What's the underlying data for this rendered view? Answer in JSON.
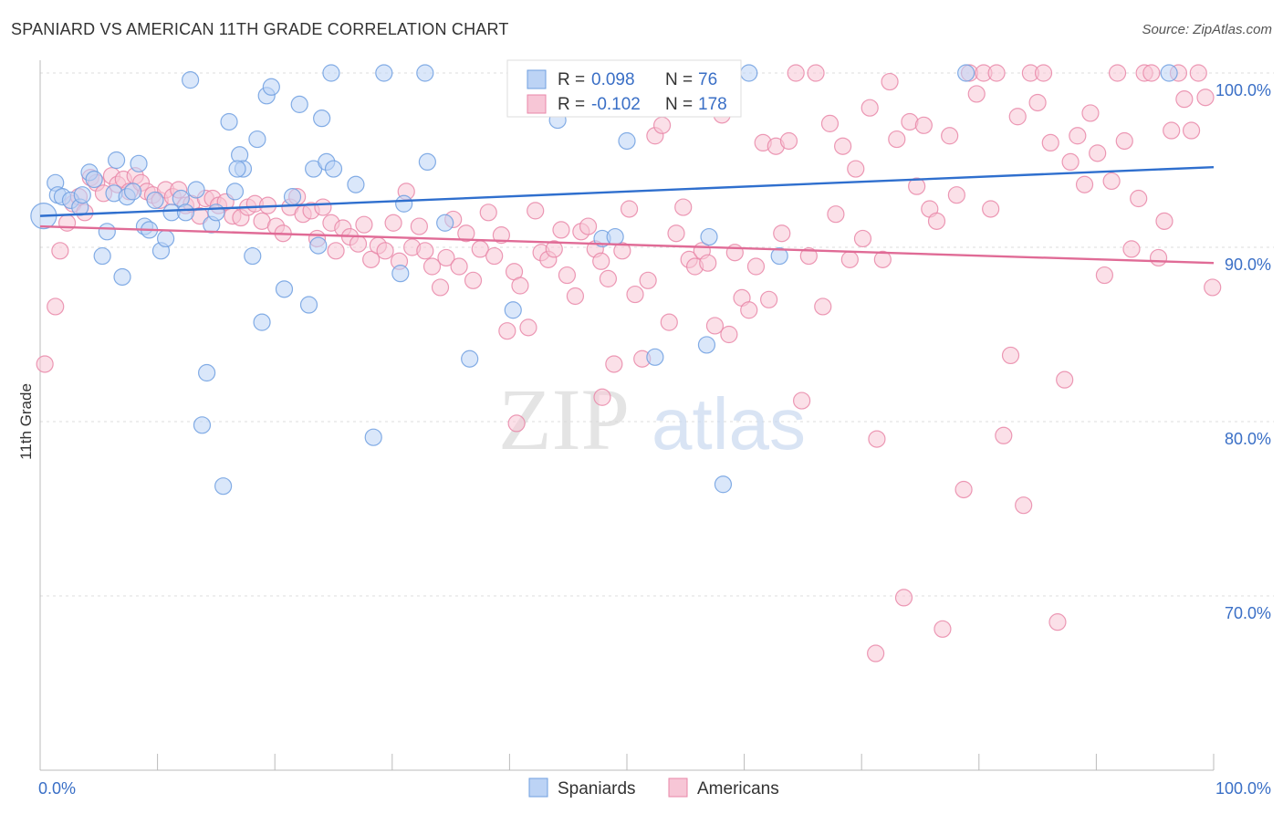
{
  "title": "SPANIARD VS AMERICAN 11TH GRADE CORRELATION CHART",
  "source": "Source: ZipAtlas.com",
  "watermark": {
    "zip": "ZIP",
    "atlas": "atlas"
  },
  "colors": {
    "spaniards": "#6f9fe0",
    "spaniards_fill": "#bcd3f5",
    "americans": "#e987a8",
    "americans_fill": "#f7c6d6",
    "blue_line": "#2f6fce",
    "pink_line": "#e06b96",
    "axis_text": "#3a6fc6",
    "grid": "#dddddd"
  },
  "legend": {
    "r_label": "R =",
    "n_label": "N =",
    "spaniards": {
      "r": "0.098",
      "n": "76"
    },
    "americans": {
      "r": "-0.102",
      "n": "178"
    }
  },
  "bottom_legend": {
    "spaniards": "Spaniards",
    "americans": "Americans"
  },
  "chart_data": {
    "type": "scatter",
    "xlabel": "",
    "ylabel": "11th Grade",
    "xlim": [
      0,
      100
    ],
    "ylim": [
      60,
      100
    ],
    "x_tick_labels": [
      "0.0%",
      "100.0%"
    ],
    "y_ticks": [
      70,
      80,
      90,
      100
    ],
    "y_tick_labels": [
      "70.0%",
      "80.0%",
      "90.0%",
      "100.0%"
    ],
    "grid": true,
    "legend_placement": "top-center",
    "series": [
      {
        "name": "Spaniards",
        "trend": {
          "x": [
            0,
            100
          ],
          "y": [
            91.8,
            94.6
          ]
        },
        "points": [
          [
            0.3,
            91.8
          ],
          [
            1.3,
            93.7
          ],
          [
            1.5,
            93.0
          ],
          [
            1.9,
            92.9
          ],
          [
            2.6,
            92.7
          ],
          [
            3.4,
            92.3
          ],
          [
            3.6,
            93.0
          ],
          [
            4.2,
            94.3
          ],
          [
            4.6,
            93.9
          ],
          [
            5.3,
            89.5
          ],
          [
            5.7,
            90.9
          ],
          [
            6.3,
            93.1
          ],
          [
            6.5,
            95.0
          ],
          [
            7.0,
            88.3
          ],
          [
            7.4,
            92.9
          ],
          [
            7.9,
            93.2
          ],
          [
            8.4,
            94.8
          ],
          [
            8.9,
            91.2
          ],
          [
            9.3,
            91.0
          ],
          [
            9.8,
            92.7
          ],
          [
            10.3,
            89.8
          ],
          [
            10.7,
            90.5
          ],
          [
            11.2,
            92.0
          ],
          [
            12.0,
            92.8
          ],
          [
            12.4,
            92.0
          ],
          [
            12.8,
            99.6
          ],
          [
            13.3,
            93.3
          ],
          [
            13.8,
            79.8
          ],
          [
            14.2,
            82.8
          ],
          [
            14.6,
            91.3
          ],
          [
            15.0,
            92.0
          ],
          [
            15.6,
            76.3
          ],
          [
            16.1,
            97.2
          ],
          [
            16.6,
            93.2
          ],
          [
            17.0,
            95.3
          ],
          [
            17.3,
            94.5
          ],
          [
            18.1,
            89.5
          ],
          [
            18.5,
            96.2
          ],
          [
            18.9,
            85.7
          ],
          [
            19.3,
            98.7
          ],
          [
            19.7,
            99.2
          ],
          [
            20.8,
            87.6
          ],
          [
            21.5,
            92.9
          ],
          [
            22.1,
            98.2
          ],
          [
            22.9,
            86.7
          ],
          [
            23.3,
            94.5
          ],
          [
            23.7,
            90.1
          ],
          [
            24.0,
            97.4
          ],
          [
            24.4,
            94.9
          ],
          [
            24.8,
            100.0
          ],
          [
            25.0,
            94.5
          ],
          [
            26.9,
            93.6
          ],
          [
            28.4,
            79.1
          ],
          [
            29.3,
            100.0
          ],
          [
            30.7,
            88.5
          ],
          [
            31.0,
            92.5
          ],
          [
            32.8,
            100.0
          ],
          [
            33.0,
            94.9
          ],
          [
            34.5,
            91.4
          ],
          [
            36.6,
            83.6
          ],
          [
            40.3,
            86.4
          ],
          [
            41.0,
            100.0
          ],
          [
            44.1,
            97.3
          ],
          [
            45.8,
            100.0
          ],
          [
            47.9,
            90.5
          ],
          [
            49.0,
            90.6
          ],
          [
            50.0,
            96.1
          ],
          [
            52.4,
            83.7
          ],
          [
            56.8,
            84.4
          ],
          [
            58.2,
            76.4
          ],
          [
            60.4,
            100.0
          ],
          [
            63.0,
            89.5
          ],
          [
            78.9,
            100.0
          ],
          [
            96.2,
            100.0
          ],
          [
            57.0,
            90.6
          ],
          [
            16.8,
            94.5
          ]
        ]
      },
      {
        "name": "Americans",
        "trend": {
          "x": [
            0,
            100
          ],
          "y": [
            91.2,
            89.1
          ]
        },
        "points": [
          [
            0.4,
            83.3
          ],
          [
            1.3,
            86.6
          ],
          [
            1.7,
            89.8
          ],
          [
            2.3,
            91.4
          ],
          [
            2.8,
            92.5
          ],
          [
            3.3,
            92.9
          ],
          [
            3.8,
            92.0
          ],
          [
            4.3,
            94.0
          ],
          [
            4.8,
            93.7
          ],
          [
            5.4,
            93.1
          ],
          [
            6.1,
            94.1
          ],
          [
            6.6,
            93.6
          ],
          [
            7.1,
            93.9
          ],
          [
            7.6,
            93.2
          ],
          [
            8.1,
            94.1
          ],
          [
            8.6,
            93.7
          ],
          [
            9.1,
            93.2
          ],
          [
            9.6,
            93.0
          ],
          [
            10.2,
            92.7
          ],
          [
            10.7,
            93.3
          ],
          [
            11.3,
            92.9
          ],
          [
            11.8,
            93.3
          ],
          [
            12.4,
            92.4
          ],
          [
            12.9,
            92.5
          ],
          [
            13.6,
            91.8
          ],
          [
            14.1,
            92.8
          ],
          [
            14.7,
            92.8
          ],
          [
            15.2,
            92.4
          ],
          [
            15.8,
            92.6
          ],
          [
            16.4,
            91.8
          ],
          [
            17.1,
            91.7
          ],
          [
            17.7,
            92.3
          ],
          [
            18.3,
            92.5
          ],
          [
            18.9,
            91.5
          ],
          [
            19.4,
            92.4
          ],
          [
            20.1,
            91.2
          ],
          [
            20.7,
            90.8
          ],
          [
            21.3,
            92.3
          ],
          [
            21.9,
            92.9
          ],
          [
            22.4,
            91.9
          ],
          [
            23.1,
            92.1
          ],
          [
            23.6,
            90.5
          ],
          [
            24.1,
            92.3
          ],
          [
            24.8,
            91.4
          ],
          [
            25.2,
            89.8
          ],
          [
            25.8,
            91.1
          ],
          [
            26.4,
            90.6
          ],
          [
            27.1,
            90.2
          ],
          [
            27.6,
            91.3
          ],
          [
            28.2,
            89.3
          ],
          [
            28.8,
            90.1
          ],
          [
            29.4,
            89.8
          ],
          [
            30.1,
            91.4
          ],
          [
            30.6,
            89.2
          ],
          [
            31.2,
            93.2
          ],
          [
            31.7,
            90.0
          ],
          [
            32.3,
            91.2
          ],
          [
            32.8,
            89.8
          ],
          [
            33.4,
            88.9
          ],
          [
            34.1,
            87.7
          ],
          [
            34.6,
            89.4
          ],
          [
            35.2,
            91.6
          ],
          [
            35.7,
            88.9
          ],
          [
            36.3,
            90.8
          ],
          [
            36.9,
            88.1
          ],
          [
            37.5,
            89.9
          ],
          [
            38.2,
            92.0
          ],
          [
            38.7,
            89.5
          ],
          [
            39.3,
            90.7
          ],
          [
            39.8,
            85.2
          ],
          [
            40.4,
            88.6
          ],
          [
            40.9,
            87.8
          ],
          [
            41.6,
            85.4
          ],
          [
            42.2,
            92.1
          ],
          [
            42.7,
            89.7
          ],
          [
            43.3,
            89.3
          ],
          [
            43.8,
            89.9
          ],
          [
            44.4,
            91.0
          ],
          [
            44.9,
            88.4
          ],
          [
            45.6,
            87.2
          ],
          [
            46.1,
            90.9
          ],
          [
            46.7,
            91.2
          ],
          [
            47.3,
            89.9
          ],
          [
            47.8,
            89.2
          ],
          [
            48.4,
            88.2
          ],
          [
            48.9,
            83.3
          ],
          [
            49.6,
            89.8
          ],
          [
            50.2,
            92.2
          ],
          [
            50.7,
            87.3
          ],
          [
            51.3,
            83.6
          ],
          [
            51.8,
            88.1
          ],
          [
            52.4,
            96.4
          ],
          [
            53.0,
            97.0
          ],
          [
            53.6,
            85.7
          ],
          [
            54.2,
            90.8
          ],
          [
            54.8,
            92.3
          ],
          [
            55.3,
            89.3
          ],
          [
            55.8,
            88.9
          ],
          [
            56.4,
            89.8
          ],
          [
            56.9,
            89.1
          ],
          [
            57.5,
            85.5
          ],
          [
            58.1,
            97.6
          ],
          [
            58.7,
            85.0
          ],
          [
            59.2,
            89.7
          ],
          [
            59.8,
            87.1
          ],
          [
            60.4,
            86.4
          ],
          [
            61.0,
            88.9
          ],
          [
            61.6,
            96.0
          ],
          [
            62.1,
            87.0
          ],
          [
            62.7,
            95.8
          ],
          [
            63.2,
            90.8
          ],
          [
            63.8,
            96.1
          ],
          [
            64.4,
            100.0
          ],
          [
            64.9,
            81.2
          ],
          [
            65.5,
            89.5
          ],
          [
            66.1,
            100.0
          ],
          [
            66.7,
            86.6
          ],
          [
            67.3,
            97.1
          ],
          [
            67.8,
            91.9
          ],
          [
            68.4,
            95.8
          ],
          [
            69.0,
            89.3
          ],
          [
            69.5,
            94.5
          ],
          [
            70.1,
            90.5
          ],
          [
            70.7,
            98.0
          ],
          [
            71.3,
            79.0
          ],
          [
            71.8,
            89.3
          ],
          [
            72.4,
            99.5
          ],
          [
            73.0,
            96.2
          ],
          [
            73.6,
            69.9
          ],
          [
            74.1,
            97.2
          ],
          [
            74.7,
            93.5
          ],
          [
            75.3,
            97.0
          ],
          [
            75.8,
            92.2
          ],
          [
            76.4,
            91.5
          ],
          [
            76.9,
            68.1
          ],
          [
            77.5,
            96.4
          ],
          [
            78.1,
            93.0
          ],
          [
            78.7,
            76.1
          ],
          [
            79.2,
            100.0
          ],
          [
            79.8,
            98.8
          ],
          [
            80.4,
            100.0
          ],
          [
            81.0,
            92.2
          ],
          [
            81.5,
            100.0
          ],
          [
            82.1,
            79.2
          ],
          [
            82.7,
            83.8
          ],
          [
            83.3,
            97.5
          ],
          [
            83.8,
            75.2
          ],
          [
            84.4,
            100.0
          ],
          [
            85.0,
            98.3
          ],
          [
            85.5,
            100.0
          ],
          [
            86.1,
            96.0
          ],
          [
            86.7,
            68.5
          ],
          [
            87.3,
            82.4
          ],
          [
            87.8,
            94.9
          ],
          [
            88.4,
            96.4
          ],
          [
            89.0,
            93.6
          ],
          [
            89.5,
            97.7
          ],
          [
            90.1,
            95.4
          ],
          [
            90.7,
            88.4
          ],
          [
            91.3,
            93.8
          ],
          [
            91.8,
            100.0
          ],
          [
            92.4,
            96.1
          ],
          [
            93.0,
            89.9
          ],
          [
            93.6,
            92.8
          ],
          [
            94.1,
            100.0
          ],
          [
            94.7,
            100.0
          ],
          [
            95.3,
            89.4
          ],
          [
            95.8,
            91.5
          ],
          [
            96.4,
            96.7
          ],
          [
            97.0,
            100.0
          ],
          [
            97.5,
            98.5
          ],
          [
            98.1,
            96.7
          ],
          [
            98.7,
            100.0
          ],
          [
            99.3,
            98.6
          ],
          [
            99.9,
            87.7
          ],
          [
            71.2,
            66.7
          ],
          [
            40.6,
            79.9
          ],
          [
            47.9,
            81.4
          ]
        ]
      }
    ]
  }
}
